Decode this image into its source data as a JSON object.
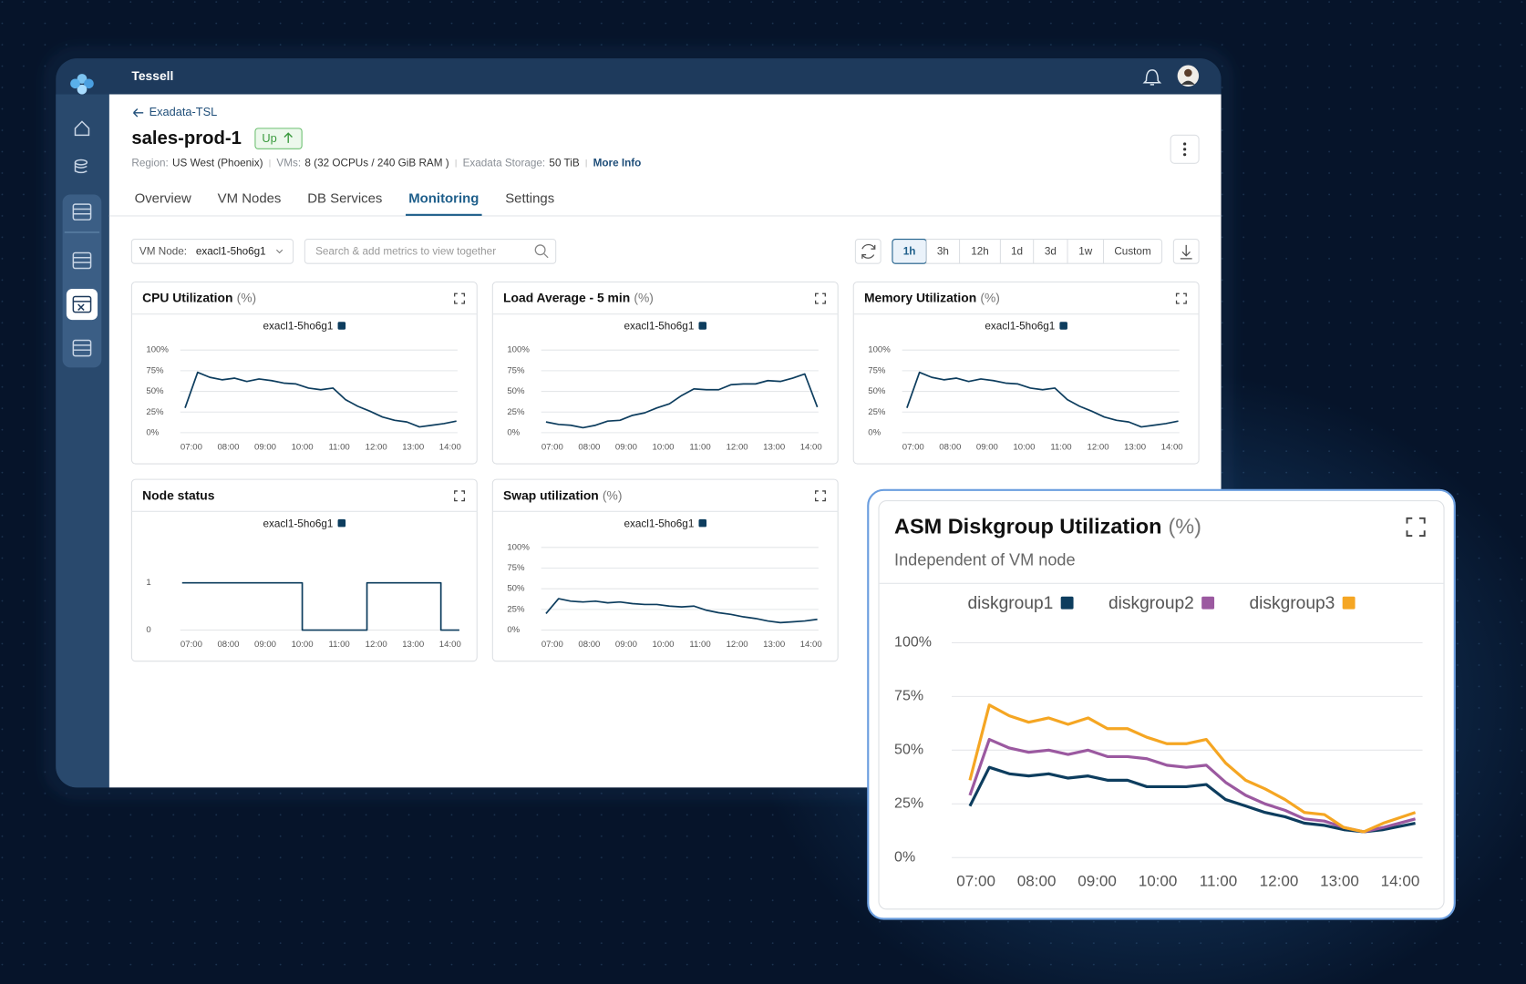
{
  "app": {
    "name": "Tessell"
  },
  "breadcrumb": "Exadata-TSL",
  "service": {
    "name": "sales-prod-1",
    "status": "Up"
  },
  "info": [
    {
      "label": "Region:",
      "value": "US West (Phoenix)"
    },
    {
      "label": "VMs:",
      "value": "8 (32 OCPUs / 240 GiB RAM )"
    },
    {
      "label": "Exadata Storage:",
      "value": "50 TiB"
    }
  ],
  "more_info": "More Info",
  "tabs": [
    "Overview",
    "VM Nodes",
    "DB Services",
    "Monitoring",
    "Settings"
  ],
  "active_tab": 3,
  "filter": {
    "label": "VM Node:",
    "value": "exacl1-5ho6g1",
    "search_placeholder": "Search & add metrics to view together"
  },
  "ranges": [
    "1h",
    "3h",
    "12h",
    "1d",
    "3d",
    "1w",
    "Custom"
  ],
  "active_range": 0,
  "chart_data": [
    {
      "type": "line",
      "title": "CPU Utilization",
      "unit": "(%)",
      "grid": true,
      "x": [
        6.83,
        7.17,
        7.5,
        7.83,
        8.17,
        8.5,
        8.83,
        9.17,
        9.5,
        9.83,
        10.17,
        10.5,
        10.83,
        11.17,
        11.5,
        11.83,
        12.17,
        12.5,
        12.83,
        13.17,
        13.5,
        13.83,
        14.17
      ],
      "xlim": [
        6.7,
        14.2
      ],
      "xticks": [
        {
          "value": 7,
          "label": "07:00"
        },
        {
          "value": 8,
          "label": "08:00"
        },
        {
          "value": 9,
          "label": "09:00"
        },
        {
          "value": 10,
          "label": "10:00"
        },
        {
          "value": 11,
          "label": "11:00"
        },
        {
          "value": 12,
          "label": "12:00"
        },
        {
          "value": 13,
          "label": "13:00"
        },
        {
          "value": 14,
          "label": "14:00"
        }
      ],
      "ylim": [
        0,
        100
      ],
      "yticks": [
        {
          "value": 0,
          "label": "0%"
        },
        {
          "value": 25,
          "label": "25%"
        },
        {
          "value": 50,
          "label": "50%"
        },
        {
          "value": 75,
          "label": "75%"
        },
        {
          "value": 100,
          "label": "100%"
        }
      ],
      "series": [
        {
          "name": "exacl1-5ho6g1",
          "color": "#0d3d5e",
          "values": [
            30,
            73,
            67,
            64,
            66,
            62,
            65,
            63,
            60,
            59,
            54,
            52,
            54,
            40,
            32,
            26,
            19,
            15,
            13,
            7,
            9,
            11,
            14
          ]
        }
      ]
    },
    {
      "type": "line",
      "title": "Load Average - 5 min",
      "unit": "(%)",
      "grid": true,
      "x": [
        6.83,
        7.17,
        7.5,
        7.83,
        8.17,
        8.5,
        8.83,
        9.17,
        9.5,
        9.83,
        10.17,
        10.5,
        10.83,
        11.17,
        11.5,
        11.83,
        12.17,
        12.5,
        12.83,
        13.17,
        13.5,
        13.83,
        14.17
      ],
      "xlim": [
        6.7,
        14.2
      ],
      "xticks": [
        {
          "value": 7,
          "label": "07:00"
        },
        {
          "value": 8,
          "label": "08:00"
        },
        {
          "value": 9,
          "label": "09:00"
        },
        {
          "value": 10,
          "label": "10:00"
        },
        {
          "value": 11,
          "label": "11:00"
        },
        {
          "value": 12,
          "label": "12:00"
        },
        {
          "value": 13,
          "label": "13:00"
        },
        {
          "value": 14,
          "label": "14:00"
        }
      ],
      "ylim": [
        0,
        100
      ],
      "yticks": [
        {
          "value": 0,
          "label": "0%"
        },
        {
          "value": 25,
          "label": "25%"
        },
        {
          "value": 50,
          "label": "50%"
        },
        {
          "value": 75,
          "label": "75%"
        },
        {
          "value": 100,
          "label": "100%"
        }
      ],
      "series": [
        {
          "name": "exacl1-5ho6g1",
          "color": "#0d3d5e",
          "values": [
            13,
            10,
            9,
            6,
            9,
            14,
            15,
            21,
            24,
            30,
            35,
            45,
            53,
            52,
            52,
            58,
            59,
            59,
            63,
            62,
            66,
            71,
            31
          ]
        }
      ]
    },
    {
      "type": "line",
      "title": "Memory Utilization",
      "unit": "(%)",
      "grid": true,
      "x": [
        6.83,
        7.17,
        7.5,
        7.83,
        8.17,
        8.5,
        8.83,
        9.17,
        9.5,
        9.83,
        10.17,
        10.5,
        10.83,
        11.17,
        11.5,
        11.83,
        12.17,
        12.5,
        12.83,
        13.17,
        13.5,
        13.83,
        14.17
      ],
      "xlim": [
        6.7,
        14.2
      ],
      "xticks": [
        {
          "value": 7,
          "label": "07:00"
        },
        {
          "value": 8,
          "label": "08:00"
        },
        {
          "value": 9,
          "label": "09:00"
        },
        {
          "value": 10,
          "label": "10:00"
        },
        {
          "value": 11,
          "label": "11:00"
        },
        {
          "value": 12,
          "label": "12:00"
        },
        {
          "value": 13,
          "label": "13:00"
        },
        {
          "value": 14,
          "label": "14:00"
        }
      ],
      "ylim": [
        0,
        100
      ],
      "yticks": [
        {
          "value": 0,
          "label": "0%"
        },
        {
          "value": 25,
          "label": "25%"
        },
        {
          "value": 50,
          "label": "50%"
        },
        {
          "value": 75,
          "label": "75%"
        },
        {
          "value": 100,
          "label": "100%"
        }
      ],
      "series": [
        {
          "name": "exacl1-5ho6g1",
          "color": "#0d3d5e",
          "values": [
            30,
            73,
            67,
            64,
            66,
            62,
            65,
            63,
            60,
            59,
            54,
            52,
            54,
            40,
            32,
            26,
            19,
            15,
            13,
            7,
            9,
            11,
            14
          ]
        }
      ]
    },
    {
      "type": "step",
      "title": "Node status",
      "grid": false,
      "x": [
        6.75,
        10,
        11.75,
        13.75,
        14.25
      ],
      "xlim": [
        6.7,
        14.2
      ],
      "xticks": [
        {
          "value": 7,
          "label": "07:00"
        },
        {
          "value": 8,
          "label": "08:00"
        },
        {
          "value": 9,
          "label": "09:00"
        },
        {
          "value": 10,
          "label": "10:00"
        },
        {
          "value": 11,
          "label": "11:00"
        },
        {
          "value": 12,
          "label": "12:00"
        },
        {
          "value": 13,
          "label": "13:00"
        },
        {
          "value": 14,
          "label": "14:00"
        }
      ],
      "ylim": [
        0,
        1.75
      ],
      "yticks": [
        0,
        1
      ],
      "series": [
        {
          "name": "exacl1-5ho6g1",
          "color": "#0d3d5e",
          "values": [
            1,
            0,
            1,
            0,
            0
          ]
        }
      ]
    },
    {
      "type": "line",
      "title": "Swap utilization",
      "unit": "(%)",
      "grid": true,
      "x": [
        6.83,
        7.17,
        7.5,
        7.83,
        8.17,
        8.5,
        8.83,
        9.17,
        9.5,
        9.83,
        10.17,
        10.5,
        10.83,
        11.17,
        11.5,
        11.83,
        12.17,
        12.5,
        12.83,
        13.17,
        13.5,
        13.83,
        14.17
      ],
      "xlim": [
        6.7,
        14.2
      ],
      "xticks": [
        {
          "value": 7,
          "label": "07:00"
        },
        {
          "value": 8,
          "label": "08:00"
        },
        {
          "value": 9,
          "label": "09:00"
        },
        {
          "value": 10,
          "label": "10:00"
        },
        {
          "value": 11,
          "label": "11:00"
        },
        {
          "value": 12,
          "label": "12:00"
        },
        {
          "value": 13,
          "label": "13:00"
        },
        {
          "value": 14,
          "label": "14:00"
        }
      ],
      "ylim": [
        0,
        100
      ],
      "yticks": [
        {
          "value": 0,
          "label": "0%"
        },
        {
          "value": 25,
          "label": "25%"
        },
        {
          "value": 50,
          "label": "50%"
        },
        {
          "value": 75,
          "label": "75%"
        },
        {
          "value": 100,
          "label": "100%"
        }
      ],
      "series": [
        {
          "name": "exacl1-5ho6g1",
          "color": "#0d3d5e",
          "values": [
            20,
            38,
            35,
            34,
            35,
            33,
            34,
            32,
            31,
            31,
            29,
            28,
            29,
            24,
            21,
            19,
            16,
            14,
            11,
            9,
            10,
            11,
            13
          ]
        }
      ]
    },
    {
      "type": "line",
      "title": "ASM Diskgroup Utilization",
      "unit": "(%)",
      "subtitle": "Independent of VM node",
      "grid": true,
      "x": [
        6.9,
        7.22,
        7.55,
        7.87,
        8.2,
        8.52,
        8.85,
        9.17,
        9.5,
        9.82,
        10.15,
        10.47,
        10.8,
        11.12,
        11.45,
        11.77,
        12.1,
        12.42,
        12.75,
        13.07,
        13.4,
        13.72,
        14.25
      ],
      "xlim": [
        6.6,
        14.37
      ],
      "xticks": [
        {
          "value": 7,
          "label": "07:00"
        },
        {
          "value": 8,
          "label": "08:00"
        },
        {
          "value": 9,
          "label": "09:00"
        },
        {
          "value": 10,
          "label": "10:00"
        },
        {
          "value": 11,
          "label": "11:00"
        },
        {
          "value": 12,
          "label": "12:00"
        },
        {
          "value": 13,
          "label": "13:00"
        },
        {
          "value": 14,
          "label": "14:00"
        }
      ],
      "ylim": [
        0,
        100
      ],
      "yticks": [
        {
          "value": 0,
          "label": "0%"
        },
        {
          "value": 25,
          "label": "25%"
        },
        {
          "value": 50,
          "label": "50%"
        },
        {
          "value": 75,
          "label": "75%"
        },
        {
          "value": 100,
          "label": "100%"
        }
      ],
      "series": [
        {
          "name": "diskgroup1",
          "color": "#0d3d5e",
          "values": [
            24,
            42,
            39,
            38,
            39,
            37,
            38,
            36,
            36,
            33,
            33,
            33,
            34,
            27,
            24,
            21,
            19,
            16,
            15,
            13,
            12,
            13,
            16
          ]
        },
        {
          "name": "diskgroup2",
          "color": "#9b59a0",
          "values": [
            29,
            55,
            51,
            49,
            50,
            48,
            50,
            47,
            47,
            46,
            43,
            42,
            43,
            35,
            29,
            25,
            22,
            18,
            17,
            14,
            12,
            14,
            18
          ]
        },
        {
          "name": "diskgroup3",
          "color": "#f5a623",
          "values": [
            36,
            71,
            66,
            63,
            65,
            62,
            65,
            60,
            60,
            56,
            53,
            53,
            55,
            44,
            36,
            32,
            27,
            21,
            20,
            14,
            12,
            16,
            21
          ]
        }
      ]
    }
  ]
}
